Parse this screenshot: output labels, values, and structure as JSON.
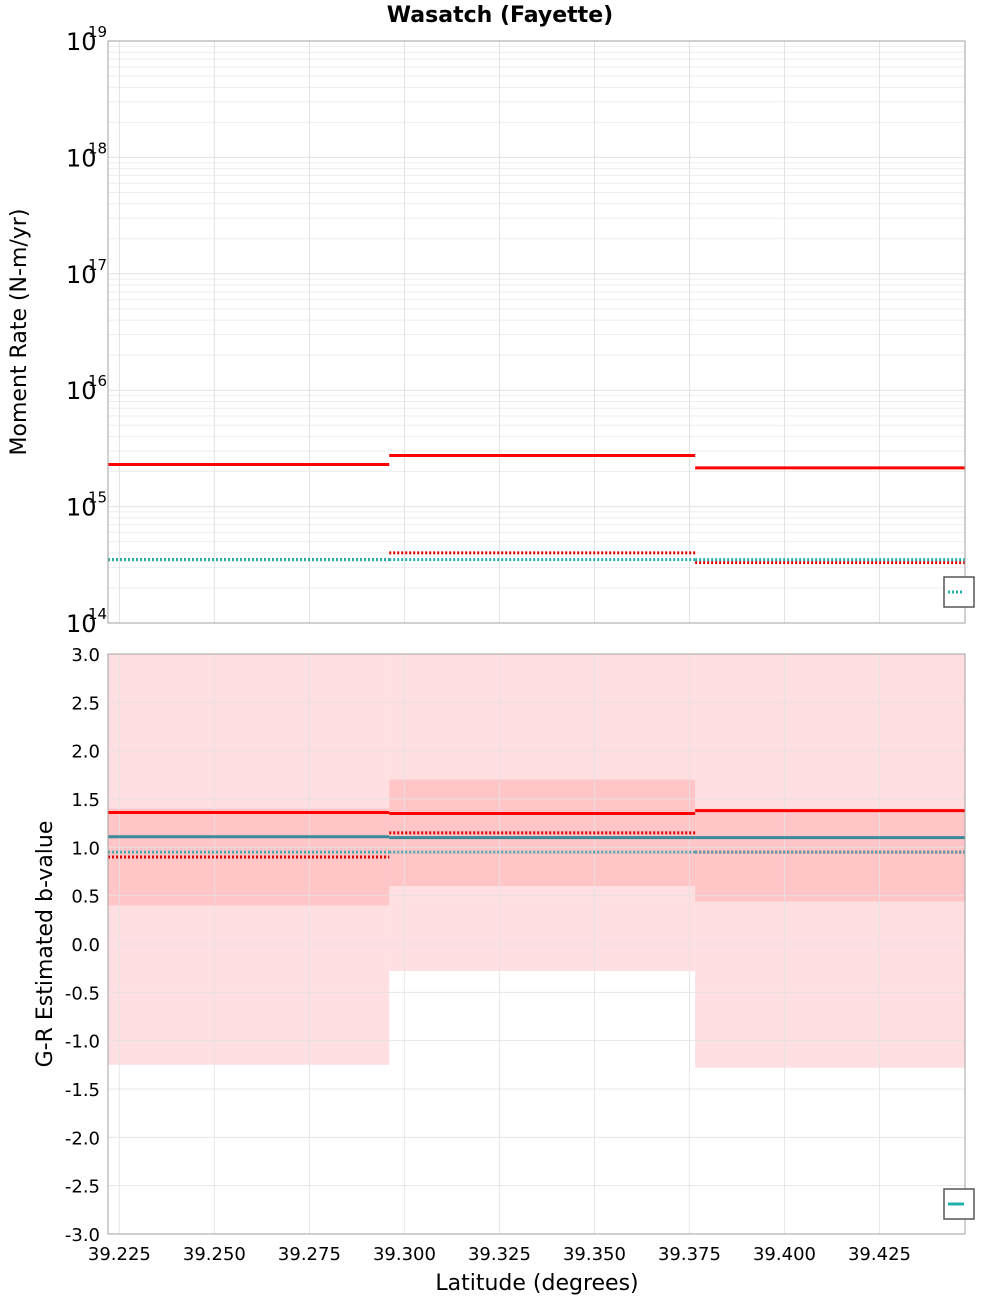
{
  "chart_data": [
    {
      "type": "line",
      "title": "Wasatch (Fayette)",
      "xlabel": "",
      "ylabel": "Moment Rate (N-m/yr)",
      "yscale": "log",
      "xlim": [
        39.222,
        39.4475
      ],
      "ylim": [
        100000000000000.0,
        1e+19
      ],
      "y_ticks": [
        {
          "base": "10",
          "exp": "19"
        },
        {
          "base": "10",
          "exp": "18"
        },
        {
          "base": "10",
          "exp": "17"
        },
        {
          "base": "10",
          "exp": "16"
        },
        {
          "base": "10",
          "exp": "15"
        },
        {
          "base": "10",
          "exp": "14"
        }
      ],
      "segments_x": [
        [
          39.222,
          39.296
        ],
        [
          39.296,
          39.3765
        ],
        [
          39.3765,
          39.4475
        ]
      ],
      "series": [
        {
          "name": "moment-rate-red-solid",
          "color": "#ff0000",
          "dash": "solid",
          "values": [
            2300000000000000.0,
            2750000000000000.0,
            2150000000000000.0
          ]
        },
        {
          "name": "moment-rate-red-dotted",
          "color": "#dd0000",
          "dash": "dotted",
          "values": [
            350000000000000.0,
            400000000000000.0,
            330000000000000.0
          ]
        },
        {
          "name": "moment-rate-teal-dotted",
          "color": "#20b2aa",
          "dash": "dotted",
          "values": [
            350000000000000.0,
            350000000000000.0,
            350000000000000.0
          ]
        }
      ]
    },
    {
      "type": "line",
      "title": "",
      "xlabel": "Latitude (degrees)",
      "ylabel": "G-R Estimated b-value",
      "xlim": [
        39.222,
        39.4475
      ],
      "ylim": [
        -3.0,
        3.0
      ],
      "y_ticks": [
        "3.0",
        "2.5",
        "2.0",
        "1.5",
        "1.0",
        "0.5",
        "0.0",
        "-0.5",
        "-1.0",
        "-1.5",
        "-2.0",
        "-2.5",
        "-3.0"
      ],
      "x_ticks": [
        "39.225",
        "39.250",
        "39.275",
        "39.300",
        "39.325",
        "39.350",
        "39.375",
        "39.400",
        "39.425"
      ],
      "segments_x": [
        [
          39.222,
          39.296
        ],
        [
          39.296,
          39.3765
        ],
        [
          39.3765,
          39.4475
        ]
      ],
      "bands": [
        {
          "name": "outer-range",
          "color": "#ffdfe1",
          "lower": [
            -1.25,
            -0.28,
            -1.28
          ],
          "upper": [
            3.0,
            3.0,
            3.0
          ]
        },
        {
          "name": "inner-range",
          "color": "#ffc5c7",
          "lower": [
            0.4,
            0.6,
            0.44
          ],
          "upper": [
            1.4,
            1.7,
            1.4
          ]
        }
      ],
      "series": [
        {
          "name": "b-value-red-solid",
          "color": "#ff0000",
          "dash": "solid",
          "values": [
            1.36,
            1.35,
            1.38
          ]
        },
        {
          "name": "b-value-teal-solid",
          "color": "#3a8a9a",
          "dash": "solid",
          "values": [
            1.11,
            1.1,
            1.1
          ]
        },
        {
          "name": "b-value-red-dotted",
          "color": "#dd0000",
          "dash": "dotted",
          "values": [
            0.9,
            1.15,
            0.95
          ]
        },
        {
          "name": "b-value-teal-dotted",
          "color": "#4aa8b0",
          "dash": "dotted",
          "values": [
            0.95,
            0.95,
            0.95
          ]
        }
      ]
    }
  ]
}
